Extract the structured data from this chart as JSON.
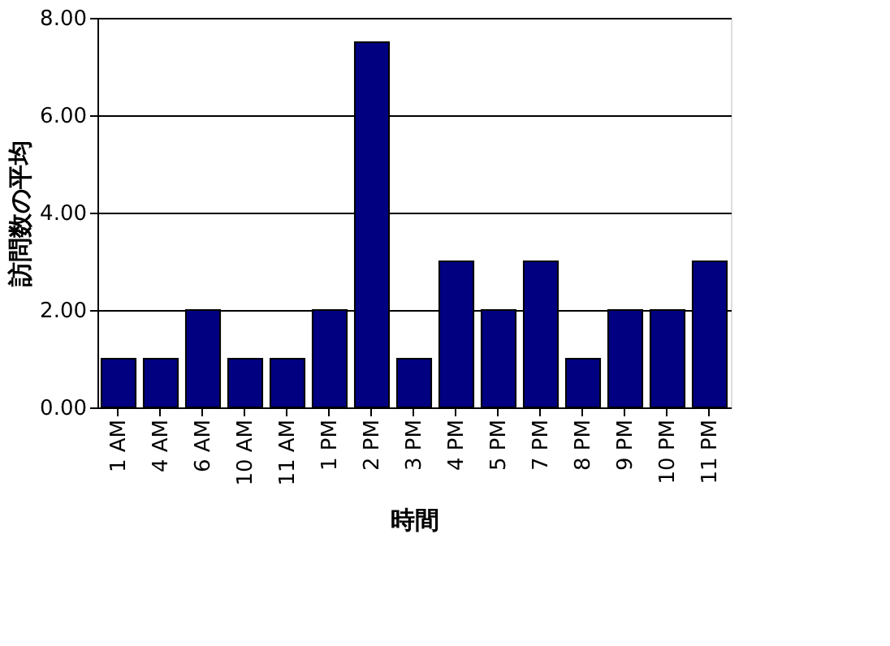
{
  "chart_data": {
    "type": "bar",
    "xlabel": "時間",
    "ylabel": "訪問数の平均",
    "categories": [
      "1 AM",
      "4 AM",
      "6 AM",
      "10 AM",
      "11 AM",
      "1 PM",
      "2 PM",
      "3 PM",
      "4 PM",
      "5 PM",
      "7 PM",
      "8 PM",
      "9 PM",
      "10 PM",
      "11 PM"
    ],
    "values": [
      1,
      1,
      2,
      1,
      1,
      2,
      7.5,
      1,
      3,
      2,
      3,
      1,
      2,
      2,
      3
    ],
    "color": "#000080",
    "ylim": [
      0,
      8
    ],
    "yticks": [
      {
        "value": 0,
        "label": "0.00"
      },
      {
        "value": 2,
        "label": "2.00"
      },
      {
        "value": 4,
        "label": "4.00"
      },
      {
        "value": 6,
        "label": "6.00"
      },
      {
        "value": 8,
        "label": "8.00"
      }
    ],
    "grid": "y"
  }
}
